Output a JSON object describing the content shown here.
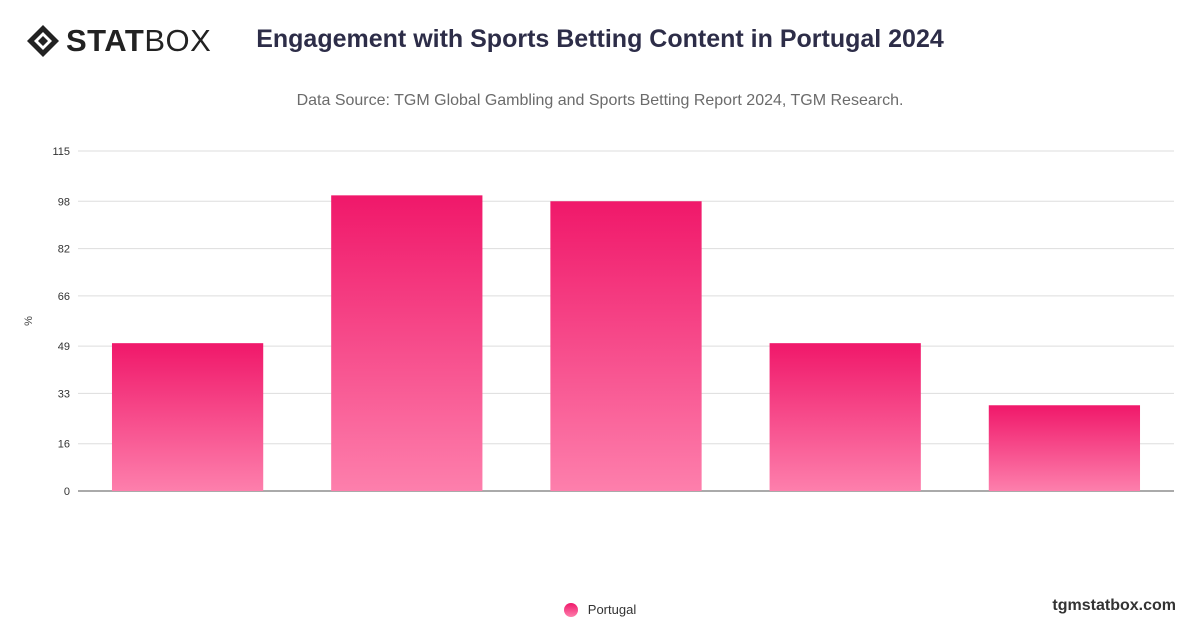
{
  "brand": {
    "logo_bold": "STAT",
    "logo_light": "BOX",
    "watermark": "tgmstatbox.com"
  },
  "colors": {
    "bar_top": "#f0186a",
    "bar_bottom": "#fd7fac",
    "grid": "#dddddd",
    "axis": "#555555"
  },
  "chart_data": {
    "type": "bar",
    "title": "Engagement with Sports Betting Content in Portugal 2024",
    "subtitle": "Data Source: TGM Global Gambling and Sports Betting Report 2024, TGM Research.",
    "ylabel": "%",
    "xlabel": "",
    "ylim": [
      0,
      115
    ],
    "yticks": [
      0,
      16,
      33,
      49,
      66,
      82,
      98,
      115
    ],
    "grid": true,
    "legend_position": "bottom-center",
    "categories": [
      "",
      "",
      "",
      "",
      ""
    ],
    "series": [
      {
        "name": "Portugal",
        "values": [
          50,
          100,
          98,
          50,
          29
        ]
      }
    ]
  }
}
